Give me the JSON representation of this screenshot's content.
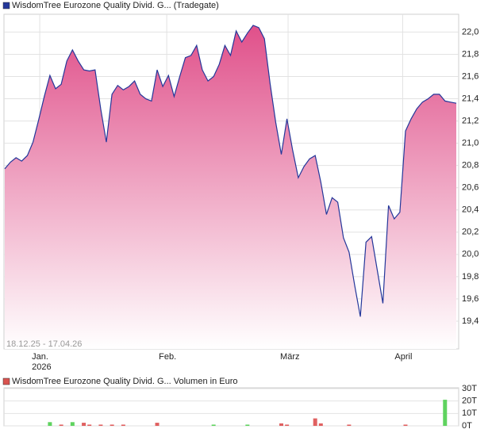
{
  "chart_data": [
    {
      "type": "area",
      "legend": "WisdomTree Eurozone Quality Divid. G... (Tradegate)",
      "date_range": "18.12.25 - 17.04.26",
      "year_label": "2026",
      "series": [
        {
          "name": "WisdomTree Eurozone Quality Divid. G... (Tradegate)",
          "color": "#24379a",
          "values": [
            20.77,
            20.83,
            20.87,
            20.84,
            20.89,
            21.01,
            21.21,
            21.42,
            21.61,
            21.49,
            21.53,
            21.74,
            21.84,
            21.74,
            21.66,
            21.65,
            21.66,
            21.31,
            21.01,
            21.44,
            21.52,
            21.48,
            21.51,
            21.56,
            21.44,
            21.4,
            21.38,
            21.66,
            21.51,
            21.61,
            21.42,
            21.6,
            21.77,
            21.79,
            21.88,
            21.66,
            21.56,
            21.6,
            21.71,
            21.88,
            21.79,
            22.01,
            21.91,
            21.99,
            22.06,
            22.04,
            21.94,
            21.54,
            21.19,
            20.9,
            21.22,
            20.94,
            20.69,
            20.79,
            20.86,
            20.89,
            20.65,
            20.36,
            20.51,
            20.47,
            20.15,
            20.02,
            19.72,
            19.44,
            20.11,
            20.16,
            19.86,
            19.56,
            20.44,
            20.32,
            20.38,
            21.11,
            21.22,
            21.31,
            21.37,
            21.4,
            21.44,
            21.44,
            21.38,
            21.37,
            21.36
          ]
        }
      ],
      "fill_color": "#e0508a",
      "xlim": [
        0,
        80
      ],
      "xticks": [
        {
          "value": 6.2,
          "label": "Jan."
        },
        {
          "value": 28.7,
          "label": "Feb."
        },
        {
          "value": 50.2,
          "label": "März"
        },
        {
          "value": 70.5,
          "label": "April"
        }
      ],
      "ylim": [
        19.15,
        22.16
      ],
      "yticks": [
        {
          "value": 19.4,
          "label": "19,4"
        },
        {
          "value": 19.6,
          "label": "19,6"
        },
        {
          "value": 19.8,
          "label": "19,8"
        },
        {
          "value": 20.0,
          "label": "20,0"
        },
        {
          "value": 20.2,
          "label": "20,2"
        },
        {
          "value": 20.4,
          "label": "20,4"
        },
        {
          "value": 20.6,
          "label": "20,6"
        },
        {
          "value": 20.8,
          "label": "20,8"
        },
        {
          "value": 21.0,
          "label": "21,0"
        },
        {
          "value": 21.2,
          "label": "21,2"
        },
        {
          "value": 21.4,
          "label": "21,4"
        },
        {
          "value": 21.6,
          "label": "21,6"
        },
        {
          "value": 21.8,
          "label": "21,8"
        },
        {
          "value": 22.0,
          "label": "22,0"
        }
      ],
      "grid": true
    },
    {
      "type": "bar",
      "legend": "WisdomTree Eurozone Quality Divid. G... Volumen in Euro",
      "legend_color": "#d9534f",
      "x": [
        8,
        10,
        12,
        14,
        15,
        17,
        19,
        21,
        27,
        37,
        43,
        49,
        50,
        55,
        56,
        61,
        71,
        78
      ],
      "values": [
        3,
        1,
        3,
        2.5,
        1,
        1,
        1,
        1,
        2.5,
        1,
        1,
        2,
        1,
        6,
        2,
        1,
        1,
        21
      ],
      "colors": [
        "#5fd35f",
        "#e06060",
        "#5fd35f",
        "#e06060",
        "#e06060",
        "#e06060",
        "#e06060",
        "#e06060",
        "#e06060",
        "#5fd35f",
        "#5fd35f",
        "#e06060",
        "#e06060",
        "#e06060",
        "#e06060",
        "#e06060",
        "#e06060",
        "#5fd35f"
      ],
      "xlim": [
        0,
        80
      ],
      "ylim": [
        0,
        30.6
      ],
      "yticks": [
        {
          "value": 0,
          "label": "0T"
        },
        {
          "value": 10,
          "label": "10T"
        },
        {
          "value": 20,
          "label": "20T"
        },
        {
          "value": 30,
          "label": "30T"
        }
      ],
      "grid": true
    }
  ]
}
